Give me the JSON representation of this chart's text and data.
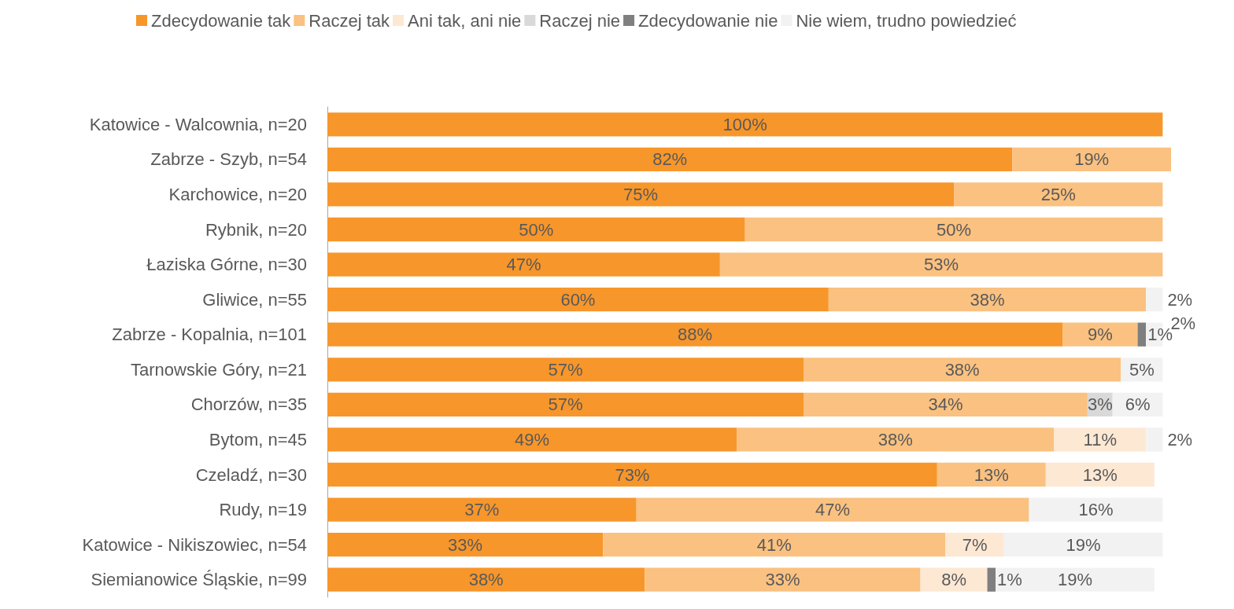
{
  "chart_data": {
    "type": "bar",
    "orientation": "horizontal",
    "stacked": true,
    "legend": "top",
    "grid": false,
    "tick_labels": "y",
    "categories": [
      "Katowice - Walcownia, n=20",
      "Zabrze - Szyb, n=54",
      "Karchowice, n=20",
      "Rybnik, n=20",
      "Łaziska Górne, n=30",
      "Gliwice, n=55",
      "Zabrze - Kopalnia, n=101",
      "Tarnowskie Góry, n=21",
      "Chorzów, n=35",
      "Bytom, n=45",
      "Czeladź, n=30",
      "Rudy, n=19",
      "Katowice - Nikiszowiec, n=54",
      "Siemianowice Śląskie, n=99"
    ],
    "series": [
      {
        "name": "Zdecydowanie tak",
        "color": "#f7962a",
        "values": [
          100,
          82,
          75,
          50,
          47,
          60,
          88,
          57,
          57,
          49,
          73,
          37,
          33,
          38
        ],
        "value_labels": [
          "100%",
          "82%",
          "75%",
          "50%",
          "47%",
          "60%",
          "88%",
          "57%",
          "57%",
          "49%",
          "73%",
          "37%",
          "33%",
          "38%"
        ]
      },
      {
        "name": "Raczej tak",
        "color": "#fac180",
        "values": [
          null,
          19,
          25,
          50,
          53,
          38,
          9,
          38,
          34,
          38,
          13,
          47,
          41,
          33
        ],
        "value_labels": [
          null,
          "19%",
          "25%",
          "50%",
          "53%",
          "38%",
          "9%",
          "38%",
          "34%",
          "38%",
          "13%",
          "47%",
          "41%",
          "33%"
        ]
      },
      {
        "name": "Ani tak, ani nie",
        "color": "#fde8d4",
        "values": [
          null,
          null,
          null,
          null,
          null,
          null,
          null,
          null,
          null,
          11,
          13,
          null,
          7,
          8
        ],
        "value_labels": [
          null,
          null,
          null,
          null,
          null,
          null,
          null,
          null,
          null,
          "11%",
          "13%",
          null,
          "7%",
          "8%"
        ]
      },
      {
        "name": "Raczej nie",
        "color": "#d9d9d9",
        "values": [
          null,
          null,
          null,
          null,
          null,
          null,
          null,
          null,
          3,
          null,
          null,
          null,
          null,
          null
        ],
        "value_labels": [
          null,
          null,
          null,
          null,
          null,
          null,
          null,
          null,
          "3%",
          null,
          null,
          null,
          null,
          null
        ]
      },
      {
        "name": "Zdecydowanie nie",
        "color": "#7f7f7f",
        "values": [
          null,
          null,
          null,
          null,
          null,
          null,
          1,
          null,
          null,
          null,
          null,
          null,
          null,
          1
        ],
        "value_labels": [
          null,
          null,
          null,
          null,
          null,
          null,
          "1%",
          null,
          null,
          null,
          null,
          null,
          null,
          "1%"
        ]
      },
      {
        "name": "Nie wiem, trudno powiedzieć",
        "color": "#f2f2f2",
        "values": [
          null,
          null,
          null,
          null,
          null,
          2,
          2,
          5,
          6,
          2,
          null,
          16,
          19,
          19
        ],
        "value_labels": [
          null,
          null,
          null,
          null,
          null,
          "2%",
          "2%",
          "5%",
          "6%",
          "2%",
          null,
          "16%",
          "19%",
          "19%"
        ]
      }
    ]
  }
}
